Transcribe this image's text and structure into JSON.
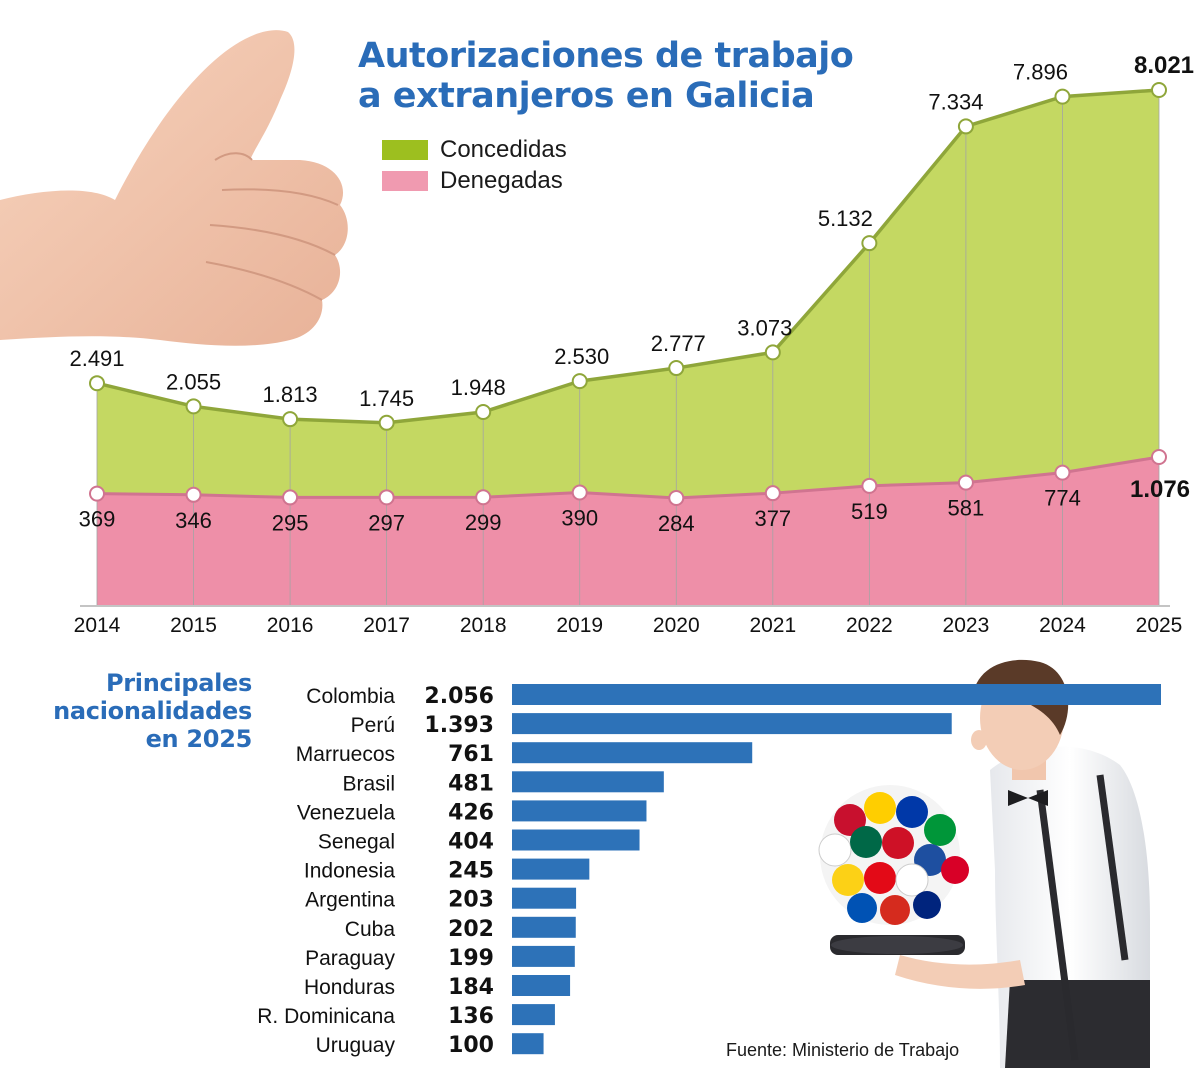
{
  "title_lines": [
    "Autorizaciones de trabajo",
    "a extranjeros en Galicia"
  ],
  "colors": {
    "accent_blue": "#2a6cb8",
    "concedidas_fill": "#c4d862",
    "concedidas_line": "#8fa63a",
    "denegadas_fill": "#ee8fa8",
    "denegadas_line": "#d07490",
    "legend_concedidas": "#9dbf1f",
    "legend_denegadas": "#f09ab0",
    "bar_blue": "#2d72b8"
  },
  "legend": [
    {
      "label": "Concedidas",
      "color_key": "legend_concedidas"
    },
    {
      "label": "Denegadas",
      "color_key": "legend_denegadas"
    }
  ],
  "nationalities_title": [
    "Principales",
    "nacionalidades",
    "en 2025"
  ],
  "source": "Fuente: Ministerio de Trabajo",
  "decorations": [
    "thumbs-up-hand-photo",
    "waiter-with-flags-photo"
  ],
  "chart_data": [
    {
      "type": "area",
      "title": "Autorizaciones de trabajo a extranjeros en Galicia",
      "x": [
        2014,
        2015,
        2016,
        2017,
        2018,
        2019,
        2020,
        2021,
        2022,
        2023,
        2024,
        2025
      ],
      "x_labels": [
        "2014",
        "2015",
        "2016",
        "2017",
        "2018",
        "2019",
        "2020",
        "2021",
        "2022",
        "2023",
        "2024",
        "2025"
      ],
      "series": [
        {
          "name": "Concedidas",
          "values": [
            2491,
            2055,
            1813,
            1745,
            1948,
            2530,
            2777,
            3073,
            5132,
            7334,
            7896,
            8021
          ],
          "labels": [
            "2.491",
            "2.055",
            "1.813",
            "1.745",
            "1.948",
            "2.530",
            "2.777",
            "3.073",
            "5.132",
            "7.334",
            "7.896",
            "8.021"
          ]
        },
        {
          "name": "Denegadas",
          "values": [
            369,
            346,
            295,
            297,
            299,
            390,
            284,
            377,
            519,
            581,
            774,
            1076
          ],
          "labels": [
            "369",
            "346",
            "295",
            "297",
            "299",
            "390",
            "284",
            "377",
            "519",
            "581",
            "774",
            "1.076"
          ]
        }
      ],
      "grid": false,
      "legend_position": "top-center"
    },
    {
      "type": "bar",
      "orientation": "horizontal",
      "title": "Principales nacionalidades en 2025",
      "categories": [
        "Colombia",
        "Perú",
        "Marruecos",
        "Brasil",
        "Venezuela",
        "Senegal",
        "Indonesia",
        "Argentina",
        "Cuba",
        "Paraguay",
        "Honduras",
        "R. Dominicana",
        "Uruguay"
      ],
      "values": [
        2056,
        1393,
        761,
        481,
        426,
        404,
        245,
        203,
        202,
        199,
        184,
        136,
        100
      ],
      "value_labels": [
        "2.056",
        "1.393",
        "761",
        "481",
        "426",
        "404",
        "245",
        "203",
        "202",
        "199",
        "184",
        "136",
        "100"
      ]
    }
  ]
}
